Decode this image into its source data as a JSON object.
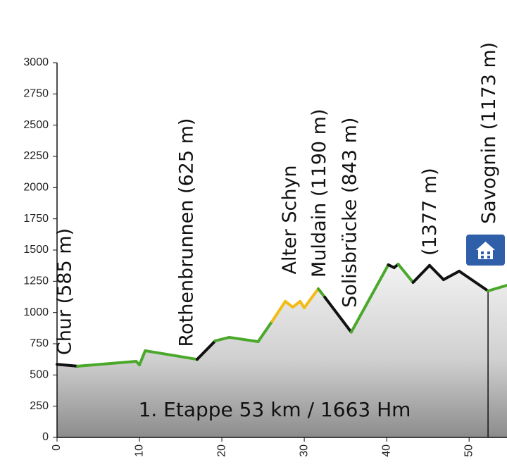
{
  "chart_data": {
    "type": "elevation-profile",
    "title": "1. Etappe 53 km / 1663 Hm",
    "x": [
      0,
      2.5,
      9.6,
      10,
      10.7,
      17,
      19.2,
      20.9,
      24.4,
      26.1,
      27.7,
      28.6,
      29.5,
      30,
      31.7,
      32.5,
      35.7,
      40.2,
      40.9,
      41.4,
      43.2,
      45.2,
      46.9,
      48.8,
      52.3,
      54.6
    ],
    "values": [
      585,
      570,
      609,
      581,
      694,
      625,
      773,
      801,
      767,
      930,
      1089,
      1043,
      1089,
      1038,
      1190,
      1122,
      843,
      1382,
      1359,
      1387,
      1241,
      1377,
      1263,
      1331,
      1173,
      1218
    ],
    "segment_colors": [
      "#111111",
      "#4aa82a",
      "#4aa82a",
      "#4aa82a",
      "#4aa82a",
      "#111111",
      "#4aa82a",
      "#4aa82a",
      "#4aa82a",
      "#f3bb15",
      "#f3bb15",
      "#f3bb15",
      "#f3bb15",
      "#f3bb15",
      "#4aa82a",
      "#111111",
      "#4aa82a",
      "#111111",
      "#111111",
      "#4aa82a",
      "#111111",
      "#111111",
      "#111111",
      "#111111",
      "#4aa82a"
    ],
    "xlim": [
      0,
      54.6
    ],
    "xticks": [
      0,
      10,
      20,
      30,
      40,
      50
    ],
    "ylim": [
      0,
      3000
    ],
    "yticks": [
      0,
      250,
      500,
      750,
      1000,
      1250,
      1500,
      1750,
      2000,
      2250,
      2500,
      2750,
      3000
    ],
    "annotations": [
      {
        "text": "Chur (585 m)",
        "x": 0.8
      },
      {
        "text": "Rothenbrunnen (625 m)",
        "x": 15.6
      },
      {
        "text": "Alter Schyn",
        "x": 28.1
      },
      {
        "text": "Muldain (1190 m)",
        "x": 31.7
      },
      {
        "text": "Solisbrücke (843 m)",
        "x": 35.4
      },
      {
        "text": "(1377 m)",
        "x": 45.1
      },
      {
        "text": "Savognin (1173 m)",
        "x": 52.3
      }
    ],
    "marker_x": 52.3
  }
}
